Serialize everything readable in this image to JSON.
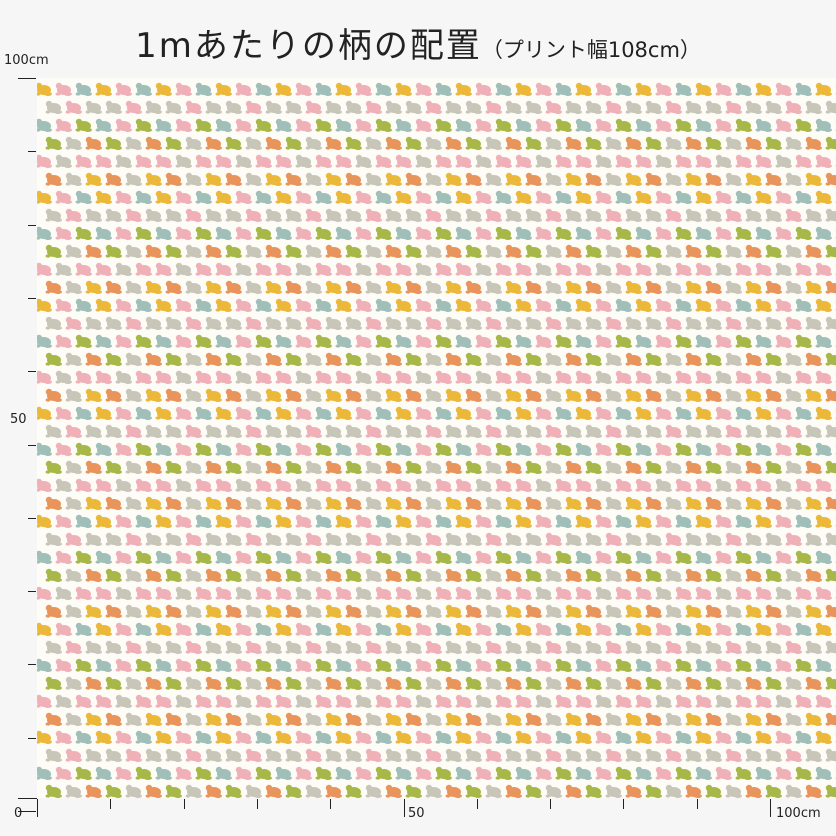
{
  "title": {
    "main": "1mあたりの柄の配置",
    "sub": "（プリント幅108cm）"
  },
  "axis": {
    "left_top_label": "100cm",
    "left_mid_label": "50",
    "bottom_zero_label": "0",
    "bottom_mid_label": "50",
    "bottom_end_label": "100cm"
  },
  "pattern": {
    "motif": "frog",
    "background": "#fdfcf7",
    "colors": [
      "#ecb83a",
      "#e8945a",
      "#f0b0b8",
      "#a8b848",
      "#9fbfb8",
      "#c8c6b8"
    ]
  }
}
